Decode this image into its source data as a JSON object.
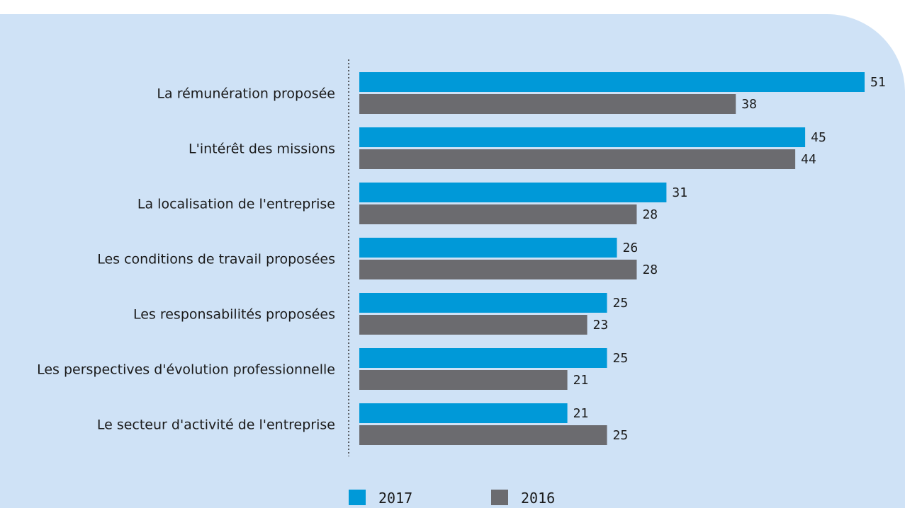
{
  "colors": {
    "series_2017": "#0099d8",
    "series_2016": "#6b6b6f",
    "background": "#cfe2f6"
  },
  "chart_data": {
    "type": "bar",
    "orientation": "horizontal",
    "title": "",
    "xlabel": "",
    "ylabel": "",
    "xlim": [
      0,
      51
    ],
    "grid": false,
    "legend_position": "bottom",
    "categories": [
      "La rémunération proposée",
      "L'intérêt des missions",
      "La localisation de l'entreprise",
      "Les conditions de travail proposées",
      "Les responsabilités proposées",
      "Les perspectives d'évolution professionnelle",
      "Le secteur d'activité de l'entreprise"
    ],
    "series": [
      {
        "name": "2017",
        "color": "#0099d8",
        "values": [
          51,
          45,
          31,
          26,
          25,
          25,
          21
        ]
      },
      {
        "name": "2016",
        "color": "#6b6b6f",
        "values": [
          38,
          44,
          28,
          28,
          23,
          21,
          25
        ]
      }
    ]
  }
}
